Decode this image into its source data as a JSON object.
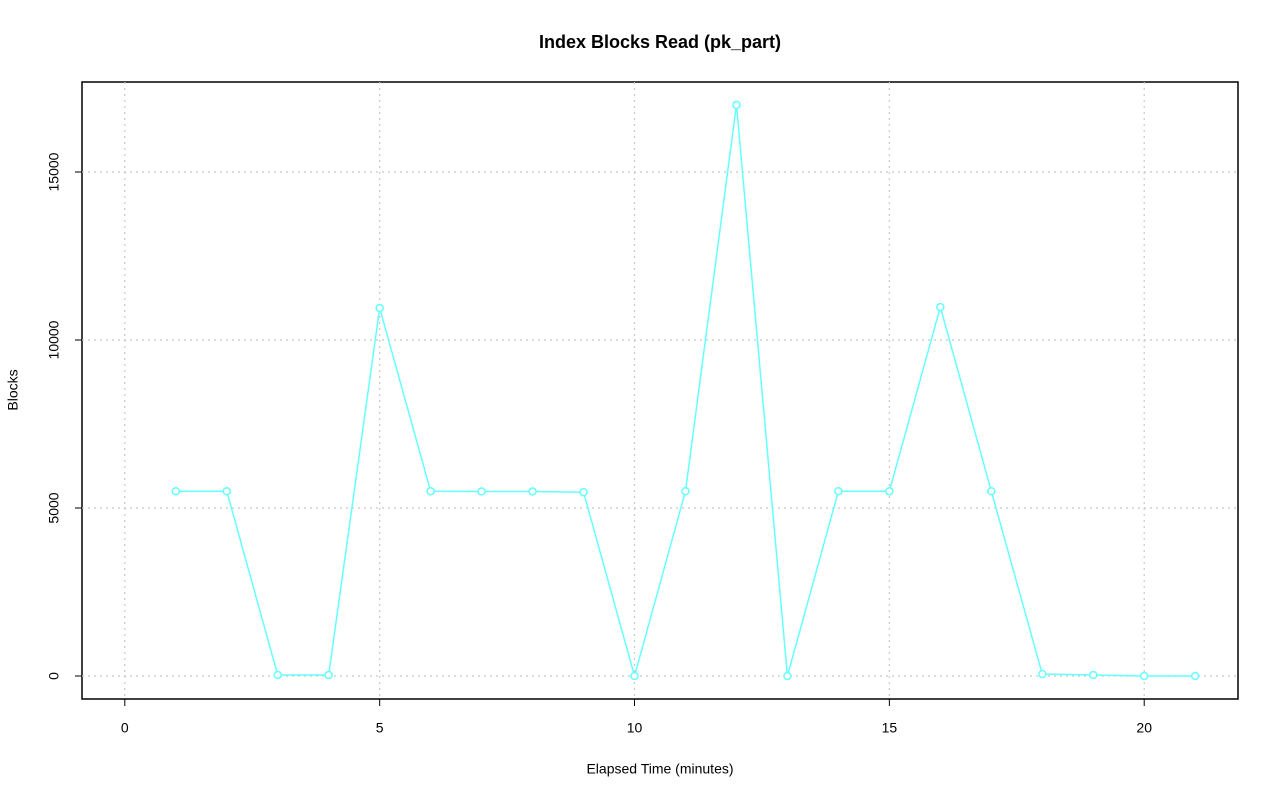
{
  "chart_data": {
    "type": "line",
    "title": "Index Blocks Read (pk_part)",
    "x_label": "Elapsed Time (minutes)",
    "y_label": "Blocks",
    "x": [
      1,
      2,
      3,
      4,
      5,
      6,
      7,
      8,
      9,
      10,
      11,
      12,
      13,
      14,
      15,
      16,
      17,
      18,
      19,
      20,
      21
    ],
    "values": [
      5500,
      5500,
      30,
      30,
      10950,
      5500,
      5490,
      5490,
      5470,
      0,
      5500,
      17000,
      0,
      5500,
      5500,
      10980,
      5500,
      60,
      30,
      0,
      0
    ],
    "color": "#66ffff",
    "xlim": [
      -0.84,
      21.84
    ],
    "ylim": [
      -685,
      17679
    ],
    "xticks": [
      0,
      5,
      10,
      15,
      20
    ],
    "yticks": [
      0,
      5000,
      10000,
      15000
    ],
    "grid": true
  }
}
